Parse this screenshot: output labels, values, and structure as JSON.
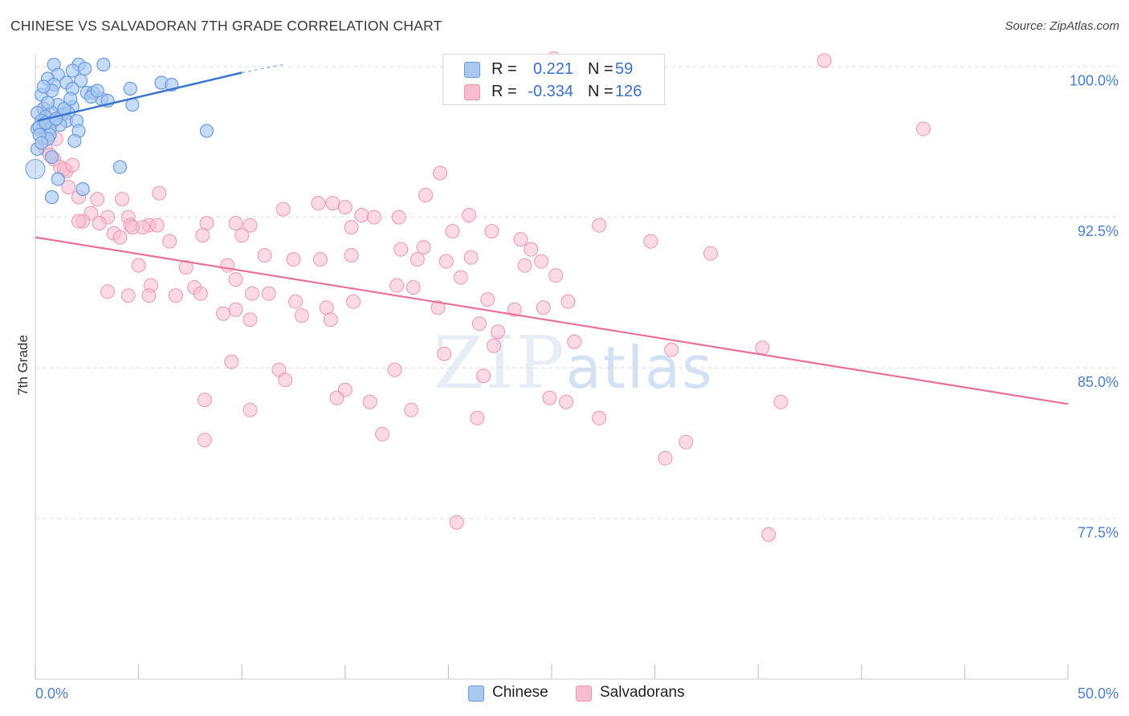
{
  "title": "CHINESE VS SALVADORAN 7TH GRADE CORRELATION CHART",
  "source": "Source: ZipAtlas.com",
  "watermark": {
    "zip": "ZIP",
    "atlas": "atlas"
  },
  "legend": {
    "rows": [
      {
        "r_label": "R =",
        "r_value": "0.221",
        "n_label": "N =",
        "n_value": "59"
      },
      {
        "r_label": "R =",
        "r_value": "-0.334",
        "n_label": "N =",
        "n_value": "126"
      }
    ]
  },
  "bottom_legend": [
    {
      "label": "Chinese"
    },
    {
      "label": "Salvadorans"
    }
  ],
  "colors": {
    "chinese_fill": "#a8c8f0",
    "chinese_stroke": "#6a9be0",
    "chinese_line": "#3a76d0",
    "salv_fill": "#f7bcd0",
    "salv_stroke": "#ee95b5",
    "salv_line": "#e8709a",
    "tick": "#4a7fd0",
    "grid": "#dddddd"
  },
  "chart_data": {
    "type": "scatter",
    "title": "CHINESE VS SALVADORAN 7TH GRADE CORRELATION CHART",
    "xlabel": "",
    "ylabel": "7th Grade",
    "xlim": [
      0,
      50
    ],
    "ylim": [
      70.2,
      101.3
    ],
    "x_tick_labels": [
      {
        "value": 0,
        "label": "0.0%"
      },
      {
        "value": 50,
        "label": "50.0%"
      }
    ],
    "y_tick_labels": [
      {
        "value": 77.5,
        "label": "77.5%"
      },
      {
        "value": 85.0,
        "label": "85.0%"
      },
      {
        "value": 92.5,
        "label": "92.5%"
      },
      {
        "value": 100.0,
        "label": "100.0%"
      }
    ],
    "y_gridlines": [
      78.2,
      85.7,
      93.2,
      100.7
    ],
    "series": [
      {
        "name": "Chinese",
        "r": 0.221,
        "n": 59,
        "trend": {
          "x": [
            0.1,
            10.0
          ],
          "y": [
            98.0,
            100.4
          ]
        },
        "trend_dashed": {
          "x": [
            10.0,
            12.0
          ],
          "y": [
            100.4,
            100.8
          ]
        },
        "points": [
          [
            0.9,
            100.8
          ],
          [
            2.1,
            100.8
          ],
          [
            3.3,
            100.8
          ],
          [
            2.4,
            100.6
          ],
          [
            1.8,
            100.5
          ],
          [
            1.1,
            100.3
          ],
          [
            0.6,
            100.1
          ],
          [
            1.5,
            99.9
          ],
          [
            0.9,
            99.8
          ],
          [
            2.2,
            100.0
          ],
          [
            1.8,
            99.6
          ],
          [
            6.1,
            99.9
          ],
          [
            4.6,
            99.6
          ],
          [
            6.6,
            99.8
          ],
          [
            0.3,
            99.3
          ],
          [
            2.5,
            99.4
          ],
          [
            2.8,
            99.4
          ],
          [
            0.8,
            99.5
          ],
          [
            3.2,
            99.1
          ],
          [
            3.5,
            99.0
          ],
          [
            1.1,
            98.8
          ],
          [
            4.7,
            98.8
          ],
          [
            0.4,
            98.6
          ],
          [
            1.8,
            98.7
          ],
          [
            0.1,
            98.4
          ],
          [
            0.8,
            98.4
          ],
          [
            1.3,
            98.3
          ],
          [
            1.6,
            98.4
          ],
          [
            0.5,
            98.2
          ],
          [
            1.5,
            98.0
          ],
          [
            0.3,
            98.0
          ],
          [
            0.9,
            98.0
          ],
          [
            2.0,
            98.0
          ],
          [
            0.4,
            97.8
          ],
          [
            1.2,
            97.8
          ],
          [
            0.1,
            97.6
          ],
          [
            0.7,
            97.6
          ],
          [
            0.2,
            97.7
          ],
          [
            8.3,
            97.5
          ],
          [
            2.1,
            97.5
          ],
          [
            0.7,
            97.3
          ],
          [
            0.8,
            96.2
          ],
          [
            4.1,
            95.7
          ],
          [
            1.1,
            95.1
          ],
          [
            2.3,
            94.6
          ],
          [
            0.8,
            94.2
          ],
          [
            0.1,
            96.6
          ],
          [
            0.5,
            97.9
          ],
          [
            1.0,
            98.1
          ],
          [
            0.6,
            97.1
          ],
          [
            0.2,
            97.3
          ],
          [
            1.4,
            98.6
          ],
          [
            2.7,
            99.2
          ],
          [
            0.4,
            99.7
          ],
          [
            1.7,
            99.1
          ],
          [
            3.0,
            99.5
          ],
          [
            0.3,
            96.9
          ],
          [
            1.9,
            97.0
          ],
          [
            0.6,
            98.9
          ]
        ]
      },
      {
        "name": "Salvadorans",
        "r": -0.334,
        "n": 126,
        "trend": {
          "x": [
            0.0,
            50.0
          ],
          "y": [
            92.2,
            83.9
          ]
        },
        "points": [
          [
            25.1,
            101.1
          ],
          [
            38.2,
            101.0
          ],
          [
            43.0,
            97.6
          ],
          [
            0.4,
            98.6
          ],
          [
            0.9,
            98.0
          ],
          [
            0.5,
            97.5
          ],
          [
            1.0,
            97.1
          ],
          [
            0.5,
            96.6
          ],
          [
            0.9,
            96.1
          ],
          [
            0.7,
            96.3
          ],
          [
            1.2,
            95.7
          ],
          [
            1.5,
            95.5
          ],
          [
            1.4,
            95.6
          ],
          [
            1.8,
            95.8
          ],
          [
            19.6,
            95.4
          ],
          [
            1.6,
            94.7
          ],
          [
            6.0,
            94.4
          ],
          [
            18.9,
            94.3
          ],
          [
            2.1,
            94.2
          ],
          [
            3.0,
            94.1
          ],
          [
            4.2,
            94.1
          ],
          [
            13.7,
            93.9
          ],
          [
            14.4,
            93.9
          ],
          [
            15.0,
            93.7
          ],
          [
            12.0,
            93.6
          ],
          [
            15.8,
            93.3
          ],
          [
            16.4,
            93.2
          ],
          [
            17.6,
            93.2
          ],
          [
            21.0,
            93.3
          ],
          [
            2.7,
            93.4
          ],
          [
            2.3,
            93.0
          ],
          [
            3.5,
            93.2
          ],
          [
            4.5,
            93.2
          ],
          [
            2.1,
            93.0
          ],
          [
            3.1,
            92.9
          ],
          [
            4.6,
            92.8
          ],
          [
            5.5,
            92.8
          ],
          [
            5.9,
            92.8
          ],
          [
            8.3,
            92.9
          ],
          [
            9.7,
            92.9
          ],
          [
            10.4,
            92.8
          ],
          [
            15.3,
            92.7
          ],
          [
            27.3,
            92.8
          ],
          [
            5.2,
            92.7
          ],
          [
            4.7,
            92.7
          ],
          [
            3.8,
            92.4
          ],
          [
            8.1,
            92.3
          ],
          [
            10.0,
            92.3
          ],
          [
            20.2,
            92.5
          ],
          [
            22.1,
            92.5
          ],
          [
            23.5,
            92.1
          ],
          [
            29.8,
            92.0
          ],
          [
            4.1,
            92.2
          ],
          [
            6.5,
            92.0
          ],
          [
            18.8,
            91.7
          ],
          [
            24.0,
            91.6
          ],
          [
            32.7,
            91.4
          ],
          [
            11.1,
            91.3
          ],
          [
            17.7,
            91.6
          ],
          [
            15.3,
            91.3
          ],
          [
            21.1,
            91.2
          ],
          [
            12.5,
            91.1
          ],
          [
            13.8,
            91.1
          ],
          [
            19.9,
            91.0
          ],
          [
            18.5,
            91.1
          ],
          [
            24.5,
            91.0
          ],
          [
            23.7,
            90.8
          ],
          [
            5.0,
            90.8
          ],
          [
            9.3,
            90.8
          ],
          [
            7.3,
            90.7
          ],
          [
            25.2,
            90.3
          ],
          [
            20.6,
            90.2
          ],
          [
            9.7,
            90.1
          ],
          [
            5.6,
            89.8
          ],
          [
            7.7,
            89.7
          ],
          [
            17.5,
            89.8
          ],
          [
            18.3,
            89.7
          ],
          [
            11.3,
            89.4
          ],
          [
            10.5,
            89.4
          ],
          [
            8.0,
            89.4
          ],
          [
            6.8,
            89.3
          ],
          [
            15.4,
            89.0
          ],
          [
            12.6,
            89.0
          ],
          [
            14.1,
            88.7
          ],
          [
            12.9,
            88.3
          ],
          [
            14.3,
            88.1
          ],
          [
            23.2,
            88.6
          ],
          [
            21.9,
            89.1
          ],
          [
            19.5,
            88.7
          ],
          [
            24.6,
            88.7
          ],
          [
            25.8,
            89.0
          ],
          [
            9.7,
            88.6
          ],
          [
            9.1,
            88.4
          ],
          [
            3.5,
            89.5
          ],
          [
            4.5,
            89.3
          ],
          [
            5.5,
            89.3
          ],
          [
            10.4,
            88.1
          ],
          [
            21.5,
            87.9
          ],
          [
            22.4,
            87.5
          ],
          [
            26.1,
            87.0
          ],
          [
            22.2,
            86.8
          ],
          [
            19.8,
            86.4
          ],
          [
            30.8,
            86.6
          ],
          [
            35.2,
            86.7
          ],
          [
            9.5,
            86.0
          ],
          [
            11.8,
            85.6
          ],
          [
            21.7,
            85.3
          ],
          [
            17.4,
            85.6
          ],
          [
            12.1,
            85.1
          ],
          [
            15.0,
            84.6
          ],
          [
            24.9,
            84.2
          ],
          [
            25.7,
            84.0
          ],
          [
            36.1,
            84.0
          ],
          [
            14.6,
            84.2
          ],
          [
            8.2,
            84.1
          ],
          [
            10.4,
            83.6
          ],
          [
            16.2,
            84.0
          ],
          [
            27.3,
            83.2
          ],
          [
            21.4,
            83.2
          ],
          [
            18.2,
            83.6
          ],
          [
            16.8,
            82.4
          ],
          [
            8.2,
            82.1
          ],
          [
            31.5,
            82.0
          ],
          [
            30.5,
            81.2
          ],
          [
            20.4,
            78.0
          ],
          [
            35.5,
            77.4
          ]
        ]
      }
    ]
  }
}
